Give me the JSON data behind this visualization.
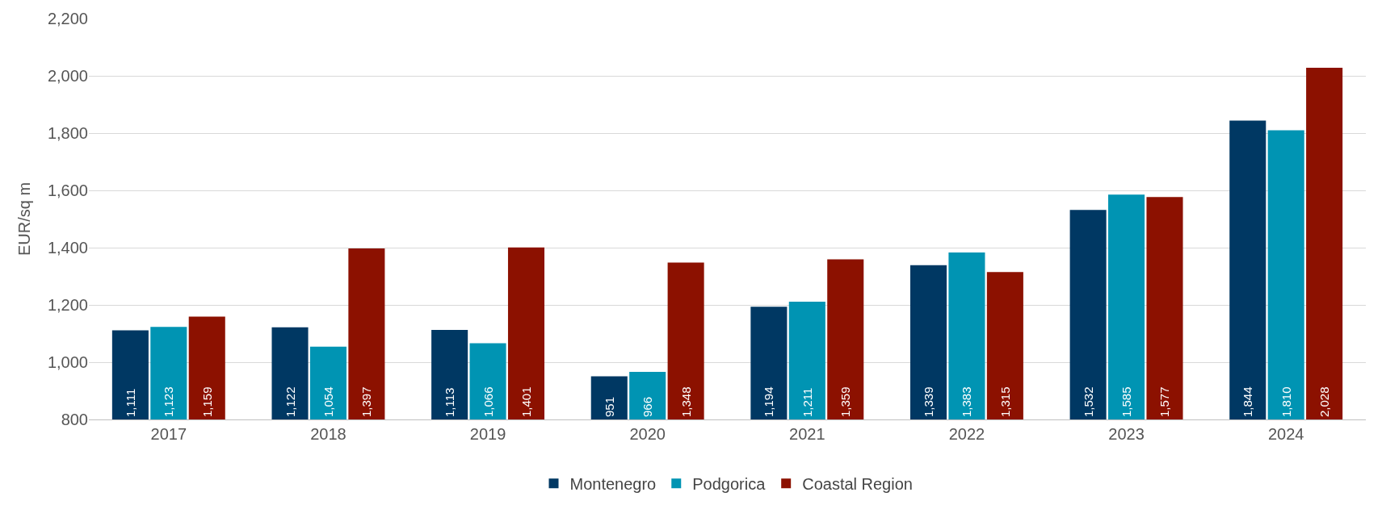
{
  "chart_data": {
    "type": "bar",
    "ylabel": "EUR/sq m",
    "categories": [
      "2017",
      "2018",
      "2019",
      "2020",
      "2021",
      "2022",
      "2023",
      "2024"
    ],
    "series": [
      {
        "name": "Montenegro",
        "color": "#003863",
        "values": [
          1111,
          1122,
          1113,
          951,
          1194,
          1339,
          1532,
          1844
        ],
        "value_labels": [
          "1,111",
          "1,122",
          "1,113",
          "951",
          "1,194",
          "1,339",
          "1,532",
          "1,844"
        ]
      },
      {
        "name": "Podgorica",
        "color": "#0094b3",
        "values": [
          1123,
          1054,
          1066,
          966,
          1211,
          1383,
          1585,
          1810
        ],
        "value_labels": [
          "1,123",
          "1,054",
          "1,066",
          "966",
          "1,211",
          "1,383",
          "1,585",
          "1,810"
        ]
      },
      {
        "name": "Coastal Region",
        "color": "#8c1100",
        "values": [
          1159,
          1397,
          1401,
          1348,
          1359,
          1315,
          1577,
          2028
        ],
        "value_labels": [
          "1,159",
          "1,397",
          "1,401",
          "1,348",
          "1,359",
          "1,315",
          "1,577",
          "2,028"
        ]
      }
    ],
    "ylim": [
      800,
      2200
    ],
    "yticks": [
      {
        "value": 800,
        "label": "800"
      },
      {
        "value": 1000,
        "label": "1,000"
      },
      {
        "value": 1200,
        "label": "1,200"
      },
      {
        "value": 1400,
        "label": "1,400"
      },
      {
        "value": 1600,
        "label": "1,600"
      },
      {
        "value": 1800,
        "label": "1,800"
      },
      {
        "value": 2000,
        "label": "2,000"
      },
      {
        "value": 2200,
        "label": "2,200"
      }
    ],
    "grid": "y",
    "legend": "bottom"
  }
}
